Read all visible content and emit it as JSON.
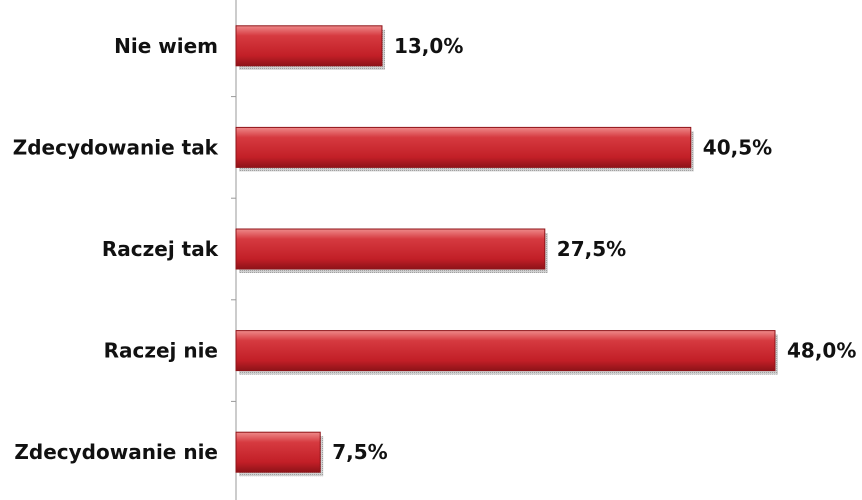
{
  "chart_data": {
    "type": "bar",
    "orientation": "horizontal",
    "title": "",
    "xlabel": "",
    "ylabel": "",
    "categories": [
      "Nie wiem",
      "Zdecydowanie tak",
      "Raczej tak",
      "Raczej nie",
      "Zdecydowanie nie"
    ],
    "values": [
      13.0,
      40.5,
      27.5,
      48.0,
      7.5
    ],
    "value_labels": [
      "13,0%",
      "40,5%",
      "27,5%",
      "48,0%",
      "7,5%"
    ],
    "xlim": [
      0,
      48
    ],
    "grid": false,
    "legend": "none",
    "colors": {
      "bar": "#c8232b",
      "bar_dark": "#8e1318",
      "bar_light": "#ee8a8a",
      "shadow": "#b5b5b5",
      "axis": "#9a9a9a"
    }
  }
}
